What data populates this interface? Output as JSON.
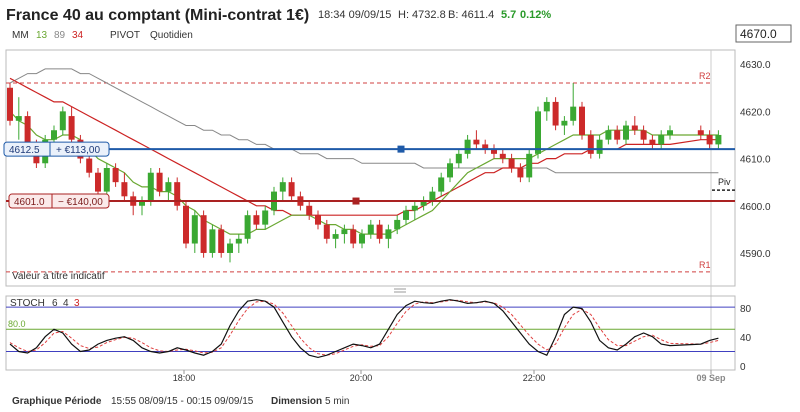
{
  "header": {
    "title": "France 40 au comptant (Mini-contrat 1€)",
    "time": "18:34 09/09/15",
    "high": "H: 4732.8",
    "low": "B: 4611.4",
    "change": "5.7",
    "change_pct": "0.12%",
    "price_box": "4670.0"
  },
  "legend": {
    "mm_label": "MM",
    "mm_periods": [
      "13",
      "89",
      "34"
    ],
    "mm_colors": [
      "#6aa832",
      "#888888",
      "#cc2222"
    ],
    "pivot_label": "PIVOT",
    "pivot_period": "Quotidien"
  },
  "levels": {
    "r2": {
      "label": "R2",
      "value": 4626
    },
    "piv": {
      "label": "Piv",
      "value": 4605
    },
    "r1": {
      "label": "R1",
      "value": 4586
    },
    "position_long": {
      "price": "4612.5",
      "pnl": "+ €113,00",
      "value": 4612
    },
    "position_short": {
      "price": "4601.0",
      "pnl": "− €140,00",
      "value": 4601
    }
  },
  "disclaimer": "Valeur à titre indicatif",
  "stoch": {
    "label": "STOCH",
    "params": [
      "6",
      "4",
      "3"
    ],
    "level_label": "80.0",
    "yticks": [
      "80",
      "40",
      "0"
    ]
  },
  "footer": {
    "period_label": "Graphique Période",
    "period_value": "15:55 08/09/15 - 00:15 09/09/15",
    "dimension_label": "Dimension",
    "dimension_value": "5 min"
  },
  "colors": {
    "up": "#3aa832",
    "down": "#cc2a2a",
    "position_line": "#1e5aa8",
    "short_line": "#aa2222"
  },
  "chart_data": [
    {
      "type": "candlestick",
      "title": "France 40 au comptant (Mini-contrat 1€)",
      "xlabel": "",
      "ylabel": "",
      "x_ticks": [
        "18:00",
        "20:00",
        "22:00",
        "09 Sep"
      ],
      "y_ticks": [
        4630,
        4620,
        4610,
        4600,
        4590
      ],
      "ylim": [
        4583,
        4633
      ],
      "gap_after_index": 75,
      "candles": [
        [
          4625,
          4626,
          4617,
          4618
        ],
        [
          4618,
          4623,
          4614,
          4619
        ],
        [
          4619,
          4620,
          4612,
          4613
        ],
        [
          4613,
          4614,
          4608,
          4609
        ],
        [
          4609,
          4615,
          4608,
          4614
        ],
        [
          4614,
          4617,
          4612,
          4616
        ],
        [
          4616,
          4621,
          4615,
          4620
        ],
        [
          4619,
          4621,
          4613,
          4614
        ],
        [
          4614,
          4615,
          4609,
          4610
        ],
        [
          4610,
          4611,
          4606,
          4607
        ],
        [
          4607,
          4608,
          4602,
          4603
        ],
        [
          4603,
          4609,
          4602,
          4608
        ],
        [
          4608,
          4609,
          4604,
          4605
        ],
        [
          4605,
          4607,
          4601,
          4602
        ],
        [
          4602,
          4603,
          4598,
          4600
        ],
        [
          4600,
          4602,
          4598,
          4601
        ],
        [
          4601,
          4608,
          4600,
          4607
        ],
        [
          4607,
          4608,
          4602,
          4603
        ],
        [
          4603,
          4606,
          4601,
          4605
        ],
        [
          4605,
          4606,
          4599,
          4600
        ],
        [
          4600,
          4601,
          4591,
          4592
        ],
        [
          4592,
          4599,
          4590,
          4598
        ],
        [
          4598,
          4599,
          4589,
          4590
        ],
        [
          4590,
          4596,
          4589,
          4595
        ],
        [
          4595,
          4596,
          4589,
          4590
        ],
        [
          4590,
          4593,
          4588,
          4592
        ],
        [
          4592,
          4594,
          4590,
          4593
        ],
        [
          4593,
          4599,
          4592,
          4598
        ],
        [
          4598,
          4599,
          4595,
          4596
        ],
        [
          4596,
          4600,
          4595,
          4599
        ],
        [
          4599,
          4604,
          4598,
          4603
        ],
        [
          4603,
          4606,
          4601,
          4605
        ],
        [
          4605,
          4606,
          4601,
          4602
        ],
        [
          4602,
          4603,
          4599,
          4600
        ],
        [
          4600,
          4601,
          4597,
          4598
        ],
        [
          4598,
          4599,
          4595,
          4596
        ],
        [
          4596,
          4597,
          4592,
          4593
        ],
        [
          4593,
          4595,
          4591,
          4594
        ],
        [
          4594,
          4596,
          4592,
          4595
        ],
        [
          4595,
          4596,
          4591,
          4592
        ],
        [
          4592,
          4595,
          4591,
          4594
        ],
        [
          4594,
          4597,
          4593,
          4596
        ],
        [
          4596,
          4597,
          4592,
          4593
        ],
        [
          4593,
          4596,
          4591,
          4595
        ],
        [
          4595,
          4598,
          4594,
          4597
        ],
        [
          4597,
          4600,
          4596,
          4599
        ],
        [
          4599,
          4601,
          4597,
          4600
        ],
        [
          4600,
          4602,
          4599,
          4601
        ],
        [
          4601,
          4604,
          4600,
          4603
        ],
        [
          4603,
          4607,
          4602,
          4606
        ],
        [
          4606,
          4610,
          4605,
          4609
        ],
        [
          4609,
          4612,
          4608,
          4611
        ],
        [
          4611,
          4615,
          4610,
          4614
        ],
        [
          4614,
          4616,
          4612,
          4613
        ],
        [
          4613,
          4614,
          4611,
          4612
        ],
        [
          4612,
          4613,
          4610,
          4611
        ],
        [
          4611,
          4612,
          4609,
          4610
        ],
        [
          4610,
          4611,
          4607,
          4608
        ],
        [
          4608,
          4609,
          4605,
          4606
        ],
        [
          4606,
          4612,
          4605,
          4611
        ],
        [
          4611,
          4621,
          4610,
          4620
        ],
        [
          4620,
          4623,
          4618,
          4622
        ],
        [
          4622,
          4623,
          4616,
          4617
        ],
        [
          4617,
          4619,
          4615,
          4618
        ],
        [
          4618,
          4626,
          4617,
          4621
        ],
        [
          4621,
          4622,
          4614,
          4615
        ],
        [
          4615,
          4616,
          4610,
          4611
        ],
        [
          4611,
          4615,
          4610,
          4614
        ],
        [
          4614,
          4617,
          4613,
          4616
        ],
        [
          4616,
          4617,
          4613,
          4614
        ],
        [
          4614,
          4618,
          4613,
          4617
        ],
        [
          4617,
          4619,
          4615,
          4616
        ],
        [
          4616,
          4617,
          4613,
          4614
        ],
        [
          4614,
          4615,
          4612,
          4613
        ],
        [
          4613,
          4616,
          4612,
          4615
        ],
        [
          4615,
          4617,
          4614,
          4616
        ],
        [
          4616,
          4617,
          4614,
          4615
        ],
        [
          4615,
          4616,
          4612,
          4613
        ],
        [
          4613,
          4616,
          4612,
          4615
        ]
      ],
      "ma13": [
        4620,
        4618,
        4617,
        4615,
        4614,
        4614,
        4615,
        4615,
        4614,
        4612,
        4610,
        4609,
        4608,
        4607,
        4605,
        4604,
        4604,
        4603,
        4603,
        4602,
        4600,
        4599,
        4597,
        4596,
        4595,
        4594,
        4594,
        4594,
        4595,
        4595,
        4596,
        4597,
        4598,
        4598,
        4598,
        4597,
        4596,
        4596,
        4595,
        4595,
        4594,
        4594,
        4594,
        4594,
        4595,
        4596,
        4597,
        4598,
        4599,
        4601,
        4603,
        4605,
        4607,
        4608,
        4609,
        4610,
        4610,
        4610,
        4610,
        4610,
        4611,
        4612,
        4613,
        4614,
        4615,
        4615,
        4615,
        4615,
        4616,
        4616,
        4616,
        4616,
        4616,
        4615,
        4615,
        4615,
        4615,
        4615,
        4615
      ],
      "ma89": [
        4626,
        4627,
        4628,
        4628,
        4629,
        4629,
        4629,
        4629,
        4628,
        4628,
        4627,
        4626,
        4625,
        4624,
        4623,
        4622,
        4621,
        4620,
        4619,
        4618,
        4617,
        4617,
        4616,
        4616,
        4615,
        4615,
        4614,
        4614,
        4613,
        4613,
        4612,
        4612,
        4612,
        4611,
        4611,
        4611,
        4610,
        4610,
        4610,
        4610,
        4609,
        4609,
        4609,
        4609,
        4609,
        4609,
        4609,
        4608,
        4608,
        4608,
        4608,
        4608,
        4608,
        4608,
        4608,
        4608,
        4608,
        4608,
        4608,
        4608,
        4608,
        4608,
        4607,
        4607,
        4607,
        4607,
        4607,
        4607,
        4607,
        4607,
        4607,
        4607,
        4607,
        4607,
        4607,
        4607,
        4607,
        4607,
        4607
      ],
      "ma34": [
        4627,
        4626,
        4625,
        4624,
        4623,
        4622,
        4622,
        4621,
        4620,
        4619,
        4618,
        4617,
        4616,
        4615,
        4614,
        4613,
        4612,
        4611,
        4610,
        4609,
        4608,
        4607,
        4606,
        4605,
        4604,
        4603,
        4602,
        4601,
        4600,
        4600,
        4599,
        4599,
        4598,
        4598,
        4598,
        4598,
        4598,
        4598,
        4598,
        4598,
        4598,
        4598,
        4598,
        4598,
        4598,
        4599,
        4599,
        4600,
        4601,
        4602,
        4603,
        4604,
        4605,
        4606,
        4607,
        4607,
        4608,
        4608,
        4608,
        4609,
        4609,
        4610,
        4610,
        4611,
        4611,
        4611,
        4612,
        4612,
        4612,
        4612,
        4613,
        4613,
        4613,
        4613,
        4613,
        4613,
        4614,
        4614,
        4614
      ]
    },
    {
      "type": "line",
      "title": "STOCH",
      "ylim": [
        -5,
        95
      ],
      "levels": [
        80,
        50,
        20
      ],
      "series": [
        {
          "name": "",
          "values": [
            30,
            20,
            18,
            25,
            40,
            50,
            45,
            30,
            20,
            22,
            30,
            35,
            38,
            40,
            35,
            25,
            20,
            18,
            20,
            25,
            22,
            18,
            15,
            20,
            30,
            55,
            75,
            88,
            90,
            88,
            80,
            60,
            40,
            25,
            15,
            12,
            15,
            20,
            25,
            30,
            28,
            25,
            30,
            50,
            70,
            82,
            88,
            86,
            85,
            88,
            90,
            88,
            85,
            86,
            88,
            85,
            75,
            60,
            45,
            30,
            20,
            15,
            40,
            70,
            80,
            78,
            60,
            35,
            25,
            22,
            30,
            40,
            45,
            40,
            30,
            28,
            30,
            35,
            38
          ]
        },
        {
          "name": "",
          "values": [
            32,
            25,
            20,
            22,
            32,
            45,
            47,
            38,
            28,
            24,
            26,
            32,
            36,
            39,
            38,
            32,
            25,
            21,
            20,
            22,
            23,
            21,
            18,
            19,
            25,
            42,
            62,
            78,
            87,
            88,
            84,
            72,
            55,
            38,
            25,
            17,
            15,
            17,
            22,
            27,
            29,
            27,
            28,
            40,
            58,
            74,
            84,
            87,
            86,
            87,
            89,
            89,
            87,
            86,
            87,
            86,
            80,
            70,
            56,
            42,
            30,
            22,
            30,
            52,
            70,
            77,
            70,
            52,
            36,
            28,
            28,
            34,
            40,
            42,
            36,
            31,
            30,
            32,
            35
          ]
        }
      ]
    }
  ]
}
